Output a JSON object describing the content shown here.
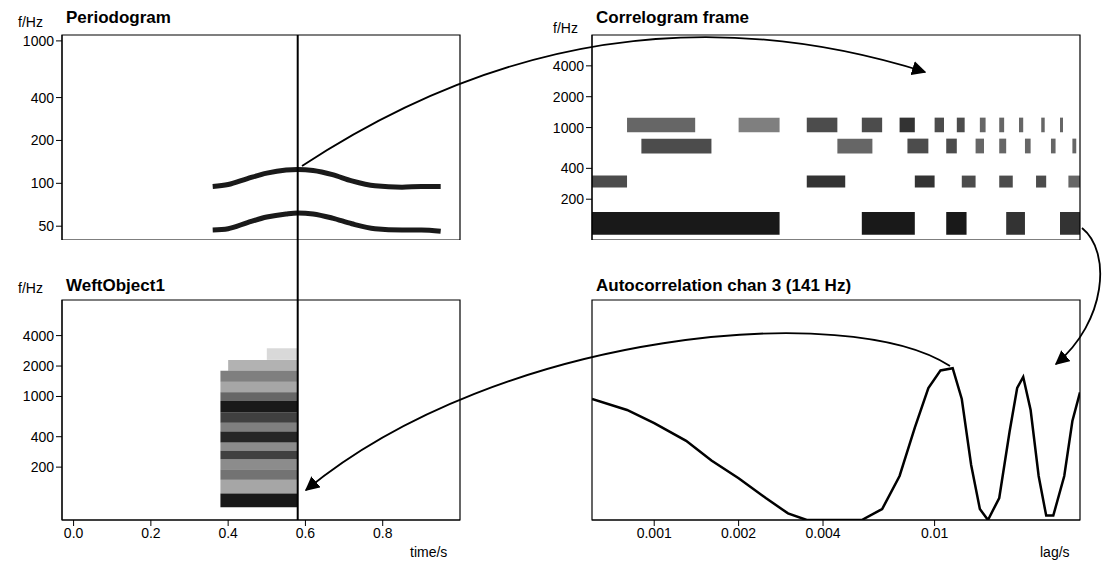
{
  "chart_data": [
    {
      "type": "line",
      "title": "Periodogram",
      "ylabel": "f/Hz",
      "log": "y",
      "x": [
        0.36,
        0.4,
        0.45,
        0.5,
        0.55,
        0.58,
        0.62,
        0.67,
        0.72,
        0.78,
        0.85,
        0.9,
        0.95
      ],
      "series": [
        {
          "color": "#1a1a1a",
          "values": [
            95,
            98,
            108,
            118,
            124,
            125,
            123,
            115,
            104,
            96,
            94,
            95,
            95
          ]
        },
        {
          "color": "#1a1a1a",
          "values": [
            47,
            48,
            53,
            58,
            61,
            62,
            61,
            57,
            52,
            48,
            47,
            47,
            46
          ]
        }
      ],
      "xlim": [
        -0.03,
        1.0
      ],
      "ylim": [
        40,
        1100
      ],
      "yticks": [
        50,
        100,
        200,
        400,
        1000
      ],
      "tick_labels": "y",
      "cursor": 0.58
    },
    {
      "type": "heatmap",
      "title": "Correlogram frame",
      "ylabel": "f/Hz",
      "log": true,
      "color": "#000000",
      "xlim": [
        0.0006,
        0.033
      ],
      "ylim": [
        80,
        8000
      ],
      "yticks": [
        200,
        400,
        1000,
        2000,
        4000
      ],
      "tick_labels": "y",
      "cells": [
        [
          0.0006,
          0.0028,
          90,
          150,
          0.9
        ],
        [
          0.0055,
          0.0085,
          90,
          150,
          0.9
        ],
        [
          0.011,
          0.013,
          90,
          150,
          0.9
        ],
        [
          0.018,
          0.021,
          90,
          150,
          0.8
        ],
        [
          0.028,
          0.033,
          90,
          150,
          0.8
        ],
        [
          0.0006,
          0.0008,
          260,
          340,
          0.7
        ],
        [
          0.0035,
          0.0048,
          260,
          340,
          0.8
        ],
        [
          0.0085,
          0.01,
          260,
          340,
          0.8
        ],
        [
          0.0125,
          0.014,
          260,
          340,
          0.7
        ],
        [
          0.017,
          0.019,
          260,
          340,
          0.7
        ],
        [
          0.023,
          0.025,
          260,
          340,
          0.7
        ],
        [
          0.03,
          0.033,
          260,
          340,
          0.6
        ],
        [
          0.0009,
          0.0016,
          560,
          780,
          0.7
        ],
        [
          0.0045,
          0.006,
          560,
          780,
          0.6
        ],
        [
          0.008,
          0.0095,
          560,
          780,
          0.7
        ],
        [
          0.011,
          0.012,
          560,
          780,
          0.7
        ],
        [
          0.014,
          0.015,
          560,
          780,
          0.6
        ],
        [
          0.017,
          0.018,
          560,
          780,
          0.6
        ],
        [
          0.021,
          0.022,
          560,
          780,
          0.6
        ],
        [
          0.026,
          0.027,
          560,
          780,
          0.6
        ],
        [
          0.031,
          0.032,
          560,
          780,
          0.6
        ],
        [
          0.0008,
          0.0014,
          900,
          1250,
          0.6
        ],
        [
          0.002,
          0.0028,
          900,
          1250,
          0.5
        ],
        [
          0.0035,
          0.0045,
          900,
          1250,
          0.7
        ],
        [
          0.0055,
          0.0065,
          900,
          1250,
          0.7
        ],
        [
          0.0075,
          0.0085,
          900,
          1250,
          0.8
        ],
        [
          0.01,
          0.0108,
          900,
          1250,
          0.7
        ],
        [
          0.012,
          0.0128,
          900,
          1250,
          0.7
        ],
        [
          0.0145,
          0.0152,
          900,
          1250,
          0.6
        ],
        [
          0.017,
          0.0177,
          900,
          1250,
          0.6
        ],
        [
          0.02,
          0.0207,
          900,
          1250,
          0.6
        ],
        [
          0.024,
          0.0247,
          900,
          1250,
          0.6
        ],
        [
          0.028,
          0.0287,
          900,
          1250,
          0.6
        ]
      ]
    },
    {
      "type": "heatmap",
      "title": "WeftObject1",
      "ylabel": "f/Hz",
      "xlabel": "time/s",
      "log": "y",
      "color": "#000000",
      "xlim": [
        -0.03,
        1.0
      ],
      "ylim": [
        60,
        9000
      ],
      "xticks": [
        {
          "value": 0,
          "label": "0.0"
        },
        0.2,
        0.4,
        0.6,
        0.8
      ],
      "yticks": [
        200,
        400,
        1000,
        2000,
        4000
      ],
      "cursor": 0.58,
      "cells": [
        [
          0.38,
          0.58,
          80,
          110,
          0.9
        ],
        [
          0.38,
          0.58,
          110,
          150,
          0.35
        ],
        [
          0.38,
          0.58,
          150,
          190,
          0.55
        ],
        [
          0.38,
          0.58,
          190,
          240,
          0.45
        ],
        [
          0.38,
          0.58,
          240,
          290,
          0.75
        ],
        [
          0.38,
          0.58,
          290,
          350,
          0.45
        ],
        [
          0.38,
          0.58,
          350,
          450,
          0.85
        ],
        [
          0.38,
          0.58,
          450,
          550,
          0.5
        ],
        [
          0.38,
          0.58,
          550,
          700,
          0.75
        ],
        [
          0.38,
          0.58,
          700,
          900,
          0.9
        ],
        [
          0.38,
          0.58,
          900,
          1100,
          0.6
        ],
        [
          0.38,
          0.58,
          1100,
          1400,
          0.35
        ],
        [
          0.38,
          0.58,
          1400,
          1800,
          0.5
        ],
        [
          0.4,
          0.58,
          1800,
          2300,
          0.3
        ],
        [
          0.5,
          0.58,
          2300,
          3000,
          0.15
        ]
      ]
    },
    {
      "type": "line",
      "title": "Autocorrelation chan 3 (141 Hz)",
      "xlabel": "lag/s",
      "log": "x",
      "color": "#000000",
      "x": [
        0.0006,
        0.0008,
        0.001,
        0.0013,
        0.0016,
        0.002,
        0.0025,
        0.003,
        0.0035,
        0.0045,
        0.0055,
        0.0065,
        0.0075,
        0.0085,
        0.0095,
        0.0105,
        0.0116,
        0.0125,
        0.0135,
        0.0145,
        0.0155,
        0.017,
        0.0185,
        0.0197,
        0.0207,
        0.022,
        0.0235,
        0.025,
        0.0265,
        0.029,
        0.031,
        0.033
      ],
      "values": [
        0.55,
        0.5,
        0.44,
        0.36,
        0.27,
        0.19,
        0.1,
        0.03,
        0,
        0,
        0,
        0.05,
        0.2,
        0.42,
        0.6,
        0.68,
        0.69,
        0.55,
        0.25,
        0.05,
        0,
        0.1,
        0.4,
        0.6,
        0.65,
        0.5,
        0.2,
        0.02,
        0.02,
        0.2,
        0.45,
        0.58
      ],
      "xlim": [
        0.0006,
        0.033
      ],
      "ylim": [
        0,
        1
      ],
      "xticks": [
        0.001,
        0.002,
        0.004,
        0.01
      ],
      "tick_labels": "x"
    }
  ]
}
